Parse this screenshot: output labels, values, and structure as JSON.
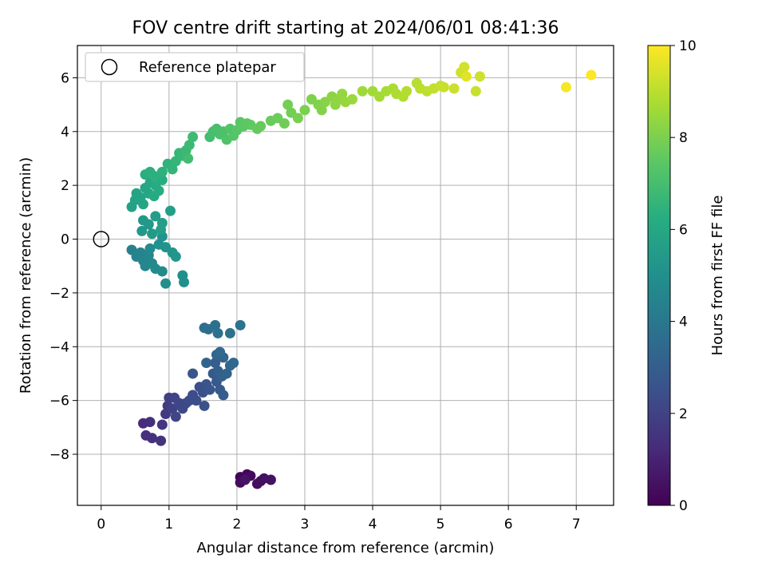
{
  "chart_data": {
    "type": "scatter",
    "title": "FOV centre drift starting at 2024/06/01 08:41:36",
    "xlabel": "Angular distance from reference (arcmin)",
    "ylabel": "Rotation from reference (arcmin)",
    "xlim": [
      -0.35,
      7.55
    ],
    "ylim": [
      -9.9,
      7.2
    ],
    "xticks": [
      0,
      1,
      2,
      3,
      4,
      5,
      6,
      7
    ],
    "yticks": [
      -8,
      -6,
      -4,
      -2,
      0,
      2,
      4,
      6
    ],
    "grid": true,
    "legend": {
      "position": "top-left",
      "entries": [
        {
          "label": "Reference platepar",
          "marker": "open-circle"
        }
      ]
    },
    "reference_point": {
      "x": 0,
      "y": 0
    },
    "colorbar": {
      "label": "Hours from first FF file",
      "range": [
        0,
        10
      ],
      "ticks": [
        0,
        2,
        4,
        6,
        8,
        10
      ],
      "colormap": "viridis"
    },
    "points": [
      {
        "x": 2.05,
        "y": -8.85,
        "c": 0.1
      },
      {
        "x": 2.1,
        "y": -8.9,
        "c": 0.15
      },
      {
        "x": 2.15,
        "y": -8.75,
        "c": 0.2
      },
      {
        "x": 2.2,
        "y": -8.8,
        "c": 0.25
      },
      {
        "x": 2.05,
        "y": -9.05,
        "c": 0.3
      },
      {
        "x": 2.3,
        "y": -9.1,
        "c": 0.35
      },
      {
        "x": 2.35,
        "y": -9.0,
        "c": 0.4
      },
      {
        "x": 2.4,
        "y": -8.9,
        "c": 0.45
      },
      {
        "x": 2.5,
        "y": -8.95,
        "c": 0.5
      },
      {
        "x": 2.12,
        "y": -8.95,
        "c": 0.55
      },
      {
        "x": 0.62,
        "y": -6.85,
        "c": 1.3
      },
      {
        "x": 0.72,
        "y": -6.8,
        "c": 1.35
      },
      {
        "x": 0.66,
        "y": -7.3,
        "c": 1.4
      },
      {
        "x": 0.75,
        "y": -7.4,
        "c": 1.45
      },
      {
        "x": 0.88,
        "y": -7.5,
        "c": 1.5
      },
      {
        "x": 0.9,
        "y": -6.9,
        "c": 1.6
      },
      {
        "x": 0.95,
        "y": -6.5,
        "c": 1.7
      },
      {
        "x": 0.98,
        "y": -6.2,
        "c": 1.8
      },
      {
        "x": 1.0,
        "y": -5.9,
        "c": 1.9
      },
      {
        "x": 1.05,
        "y": -6.3,
        "c": 2.0
      },
      {
        "x": 1.08,
        "y": -5.9,
        "c": 2.05
      },
      {
        "x": 1.1,
        "y": -6.6,
        "c": 2.1
      },
      {
        "x": 1.15,
        "y": -6.1,
        "c": 2.15
      },
      {
        "x": 1.2,
        "y": -6.3,
        "c": 2.2
      },
      {
        "x": 1.25,
        "y": -6.1,
        "c": 2.25
      },
      {
        "x": 1.3,
        "y": -6.0,
        "c": 2.3
      },
      {
        "x": 1.35,
        "y": -5.8,
        "c": 2.35
      },
      {
        "x": 1.4,
        "y": -6.0,
        "c": 2.4
      },
      {
        "x": 1.45,
        "y": -5.5,
        "c": 2.45
      },
      {
        "x": 1.5,
        "y": -5.7,
        "c": 2.5
      },
      {
        "x": 1.52,
        "y": -6.2,
        "c": 2.55
      },
      {
        "x": 1.55,
        "y": -5.4,
        "c": 2.6
      },
      {
        "x": 1.35,
        "y": -5.0,
        "c": 2.65
      },
      {
        "x": 1.6,
        "y": -5.6,
        "c": 2.7
      },
      {
        "x": 1.65,
        "y": -5.0,
        "c": 2.8
      },
      {
        "x": 1.7,
        "y": -5.3,
        "c": 2.85
      },
      {
        "x": 1.75,
        "y": -5.6,
        "c": 2.9
      },
      {
        "x": 1.8,
        "y": -5.8,
        "c": 2.95
      },
      {
        "x": 1.68,
        "y": -4.6,
        "c": 3.0
      },
      {
        "x": 1.72,
        "y": -4.9,
        "c": 3.05
      },
      {
        "x": 1.78,
        "y": -5.1,
        "c": 3.1
      },
      {
        "x": 1.85,
        "y": -5.0,
        "c": 3.15
      },
      {
        "x": 1.55,
        "y": -4.6,
        "c": 3.2
      },
      {
        "x": 1.8,
        "y": -4.4,
        "c": 3.25
      },
      {
        "x": 1.7,
        "y": -4.3,
        "c": 3.3
      },
      {
        "x": 1.9,
        "y": -4.7,
        "c": 3.35
      },
      {
        "x": 1.95,
        "y": -4.6,
        "c": 3.4
      },
      {
        "x": 1.75,
        "y": -4.2,
        "c": 3.45
      },
      {
        "x": 1.52,
        "y": -3.3,
        "c": 3.6
      },
      {
        "x": 1.58,
        "y": -3.35,
        "c": 3.65
      },
      {
        "x": 1.68,
        "y": -3.2,
        "c": 3.7
      },
      {
        "x": 1.72,
        "y": -3.5,
        "c": 3.75
      },
      {
        "x": 1.9,
        "y": -3.5,
        "c": 3.8
      },
      {
        "x": 2.05,
        "y": -3.2,
        "c": 3.85
      },
      {
        "x": 0.45,
        "y": -0.4,
        "c": 4.4
      },
      {
        "x": 0.52,
        "y": -0.65,
        "c": 4.45
      },
      {
        "x": 0.58,
        "y": -0.5,
        "c": 4.5
      },
      {
        "x": 0.62,
        "y": -0.8,
        "c": 4.55
      },
      {
        "x": 0.65,
        "y": -1.0,
        "c": 4.6
      },
      {
        "x": 0.7,
        "y": -0.6,
        "c": 4.65
      },
      {
        "x": 0.75,
        "y": -0.9,
        "c": 4.7
      },
      {
        "x": 0.8,
        "y": -1.1,
        "c": 4.75
      },
      {
        "x": 0.72,
        "y": -0.35,
        "c": 4.8
      },
      {
        "x": 0.9,
        "y": -1.2,
        "c": 4.85
      },
      {
        "x": 0.95,
        "y": -1.65,
        "c": 4.9
      },
      {
        "x": 1.2,
        "y": -1.35,
        "c": 4.95
      },
      {
        "x": 1.22,
        "y": -1.6,
        "c": 5.0
      },
      {
        "x": 0.85,
        "y": -0.2,
        "c": 5.05
      },
      {
        "x": 0.9,
        "y": 0.1,
        "c": 5.1
      },
      {
        "x": 0.95,
        "y": -0.3,
        "c": 5.15
      },
      {
        "x": 1.05,
        "y": -0.5,
        "c": 5.2
      },
      {
        "x": 1.1,
        "y": -0.65,
        "c": 5.25
      },
      {
        "x": 0.6,
        "y": 0.3,
        "c": 5.3
      },
      {
        "x": 0.62,
        "y": 0.7,
        "c": 5.35
      },
      {
        "x": 0.7,
        "y": 0.55,
        "c": 5.4
      },
      {
        "x": 0.75,
        "y": 0.2,
        "c": 5.45
      },
      {
        "x": 0.8,
        "y": 0.85,
        "c": 5.5
      },
      {
        "x": 0.9,
        "y": 0.6,
        "c": 5.55
      },
      {
        "x": 0.88,
        "y": 0.35,
        "c": 5.6
      },
      {
        "x": 1.02,
        "y": 1.05,
        "c": 5.65
      },
      {
        "x": 0.45,
        "y": 1.2,
        "c": 5.7
      },
      {
        "x": 0.5,
        "y": 1.45,
        "c": 5.75
      },
      {
        "x": 0.52,
        "y": 1.7,
        "c": 5.8
      },
      {
        "x": 0.58,
        "y": 1.55,
        "c": 5.85
      },
      {
        "x": 0.62,
        "y": 1.3,
        "c": 5.9
      },
      {
        "x": 0.65,
        "y": 1.9,
        "c": 5.95
      },
      {
        "x": 0.7,
        "y": 1.7,
        "c": 6.0
      },
      {
        "x": 0.72,
        "y": 2.1,
        "c": 6.05
      },
      {
        "x": 0.78,
        "y": 1.6,
        "c": 6.1
      },
      {
        "x": 0.8,
        "y": 2.0,
        "c": 6.15
      },
      {
        "x": 0.85,
        "y": 1.8,
        "c": 6.2
      },
      {
        "x": 0.9,
        "y": 2.2,
        "c": 6.25
      },
      {
        "x": 0.65,
        "y": 2.4,
        "c": 6.3
      },
      {
        "x": 0.72,
        "y": 2.5,
        "c": 6.35
      },
      {
        "x": 0.78,
        "y": 2.35,
        "c": 6.4
      },
      {
        "x": 0.9,
        "y": 2.5,
        "c": 6.45
      },
      {
        "x": 0.98,
        "y": 2.8,
        "c": 6.5
      },
      {
        "x": 1.05,
        "y": 2.6,
        "c": 6.55
      },
      {
        "x": 1.1,
        "y": 2.9,
        "c": 6.6
      },
      {
        "x": 1.15,
        "y": 3.2,
        "c": 6.65
      },
      {
        "x": 1.2,
        "y": 3.1,
        "c": 6.7
      },
      {
        "x": 1.25,
        "y": 3.3,
        "c": 6.75
      },
      {
        "x": 1.3,
        "y": 3.5,
        "c": 6.8
      },
      {
        "x": 1.35,
        "y": 3.8,
        "c": 6.85
      },
      {
        "x": 1.28,
        "y": 3.0,
        "c": 6.9
      },
      {
        "x": 1.6,
        "y": 3.8,
        "c": 6.95
      },
      {
        "x": 1.65,
        "y": 4.0,
        "c": 7.0
      },
      {
        "x": 1.7,
        "y": 4.1,
        "c": 7.05
      },
      {
        "x": 1.75,
        "y": 3.9,
        "c": 7.1
      },
      {
        "x": 1.8,
        "y": 4.0,
        "c": 7.15
      },
      {
        "x": 1.85,
        "y": 3.7,
        "c": 7.2
      },
      {
        "x": 1.9,
        "y": 4.1,
        "c": 7.25
      },
      {
        "x": 1.95,
        "y": 3.85,
        "c": 7.3
      },
      {
        "x": 2.0,
        "y": 4.05,
        "c": 7.35
      },
      {
        "x": 2.05,
        "y": 4.35,
        "c": 7.4
      },
      {
        "x": 2.1,
        "y": 4.2,
        "c": 7.45
      },
      {
        "x": 2.15,
        "y": 4.3,
        "c": 7.5
      },
      {
        "x": 2.2,
        "y": 4.25,
        "c": 7.55
      },
      {
        "x": 2.3,
        "y": 4.1,
        "c": 7.6
      },
      {
        "x": 2.35,
        "y": 4.2,
        "c": 7.65
      },
      {
        "x": 2.5,
        "y": 4.4,
        "c": 7.7
      },
      {
        "x": 2.6,
        "y": 4.5,
        "c": 7.75
      },
      {
        "x": 2.7,
        "y": 4.3,
        "c": 7.8
      },
      {
        "x": 2.8,
        "y": 4.7,
        "c": 7.85
      },
      {
        "x": 2.75,
        "y": 5.0,
        "c": 7.9
      },
      {
        "x": 2.9,
        "y": 4.5,
        "c": 7.95
      },
      {
        "x": 3.0,
        "y": 4.8,
        "c": 8.0
      },
      {
        "x": 3.1,
        "y": 5.2,
        "c": 8.05
      },
      {
        "x": 3.2,
        "y": 5.0,
        "c": 8.1
      },
      {
        "x": 3.25,
        "y": 4.8,
        "c": 8.15
      },
      {
        "x": 3.3,
        "y": 5.1,
        "c": 8.2
      },
      {
        "x": 3.4,
        "y": 5.3,
        "c": 8.25
      },
      {
        "x": 3.45,
        "y": 5.0,
        "c": 8.3
      },
      {
        "x": 3.5,
        "y": 5.2,
        "c": 8.35
      },
      {
        "x": 3.55,
        "y": 5.4,
        "c": 8.4
      },
      {
        "x": 3.6,
        "y": 5.1,
        "c": 8.45
      },
      {
        "x": 3.7,
        "y": 5.2,
        "c": 8.5
      },
      {
        "x": 3.85,
        "y": 5.5,
        "c": 8.55
      },
      {
        "x": 4.0,
        "y": 5.5,
        "c": 8.6
      },
      {
        "x": 4.1,
        "y": 5.3,
        "c": 8.65
      },
      {
        "x": 4.2,
        "y": 5.5,
        "c": 8.7
      },
      {
        "x": 4.3,
        "y": 5.6,
        "c": 8.75
      },
      {
        "x": 4.35,
        "y": 5.4,
        "c": 8.8
      },
      {
        "x": 4.45,
        "y": 5.3,
        "c": 8.85
      },
      {
        "x": 4.5,
        "y": 5.5,
        "c": 8.9
      },
      {
        "x": 4.65,
        "y": 5.8,
        "c": 8.95
      },
      {
        "x": 4.7,
        "y": 5.6,
        "c": 9.0
      },
      {
        "x": 4.8,
        "y": 5.5,
        "c": 9.05
      },
      {
        "x": 4.9,
        "y": 5.6,
        "c": 9.1
      },
      {
        "x": 5.0,
        "y": 5.7,
        "c": 9.15
      },
      {
        "x": 5.05,
        "y": 5.65,
        "c": 9.2
      },
      {
        "x": 5.2,
        "y": 5.6,
        "c": 9.25
      },
      {
        "x": 5.3,
        "y": 6.2,
        "c": 9.3
      },
      {
        "x": 5.35,
        "y": 6.4,
        "c": 9.35
      },
      {
        "x": 5.38,
        "y": 6.05,
        "c": 9.6
      },
      {
        "x": 5.52,
        "y": 5.5,
        "c": 9.2
      },
      {
        "x": 5.58,
        "y": 6.05,
        "c": 9.3
      },
      {
        "x": 6.85,
        "y": 5.65,
        "c": 9.9
      },
      {
        "x": 7.22,
        "y": 6.1,
        "c": 10.0
      }
    ]
  }
}
